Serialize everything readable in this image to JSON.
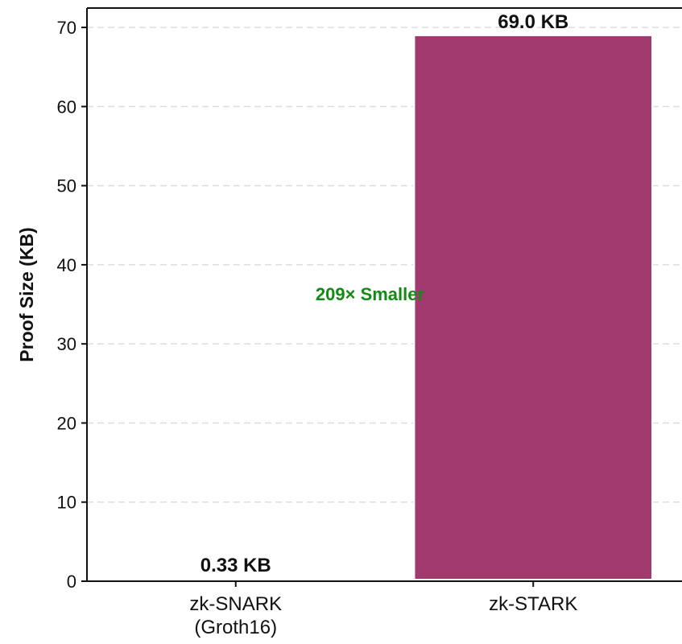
{
  "chart_data": {
    "type": "bar",
    "categories": [
      [
        "zk-SNARK",
        "(Groth16)"
      ],
      [
        "zk-STARK"
      ]
    ],
    "values": [
      0.33,
      69.0
    ],
    "data_labels": [
      "0.33 KB",
      "69.0 KB"
    ],
    "bar_colors": [
      "#1f77b4",
      "#a03a6f"
    ],
    "title": "",
    "xlabel": "",
    "ylabel": "Proof Size (KB)",
    "ylim": [
      0,
      72.45
    ],
    "yticks": [
      0,
      10,
      20,
      30,
      40,
      50,
      60,
      70
    ],
    "grid": "y-dashed",
    "legend": "none",
    "annotation": {
      "text": "209× Smaller",
      "color": "#138a13",
      "y": 35.5
    }
  }
}
